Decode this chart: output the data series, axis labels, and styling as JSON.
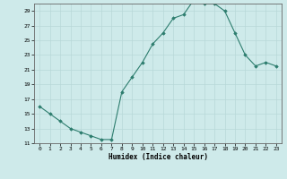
{
  "x": [
    0,
    1,
    2,
    3,
    4,
    5,
    6,
    7,
    8,
    9,
    10,
    11,
    12,
    13,
    14,
    15,
    16,
    17,
    18,
    19,
    20,
    21,
    22,
    23
  ],
  "y": [
    16,
    15,
    14,
    13,
    12.5,
    12,
    11.5,
    11.5,
    18,
    20,
    22,
    24.5,
    26,
    28,
    28.5,
    30.5,
    30,
    30,
    29,
    26,
    23,
    21.5,
    22,
    21.5
  ],
  "xlabel": "Humidex (Indice chaleur)",
  "ylim": [
    11,
    30
  ],
  "xlim": [
    -0.5,
    23.5
  ],
  "yticks": [
    11,
    13,
    15,
    17,
    19,
    21,
    23,
    25,
    27,
    29
  ],
  "xticks": [
    0,
    1,
    2,
    3,
    4,
    5,
    6,
    7,
    8,
    9,
    10,
    11,
    12,
    13,
    14,
    15,
    16,
    17,
    18,
    19,
    20,
    21,
    22,
    23
  ],
  "line_color": "#2d7d6e",
  "marker_color": "#2d7d6e",
  "bg_color": "#ceeaea",
  "grid_color": "#b8d8d8",
  "figsize": [
    3.2,
    2.0
  ],
  "dpi": 100
}
